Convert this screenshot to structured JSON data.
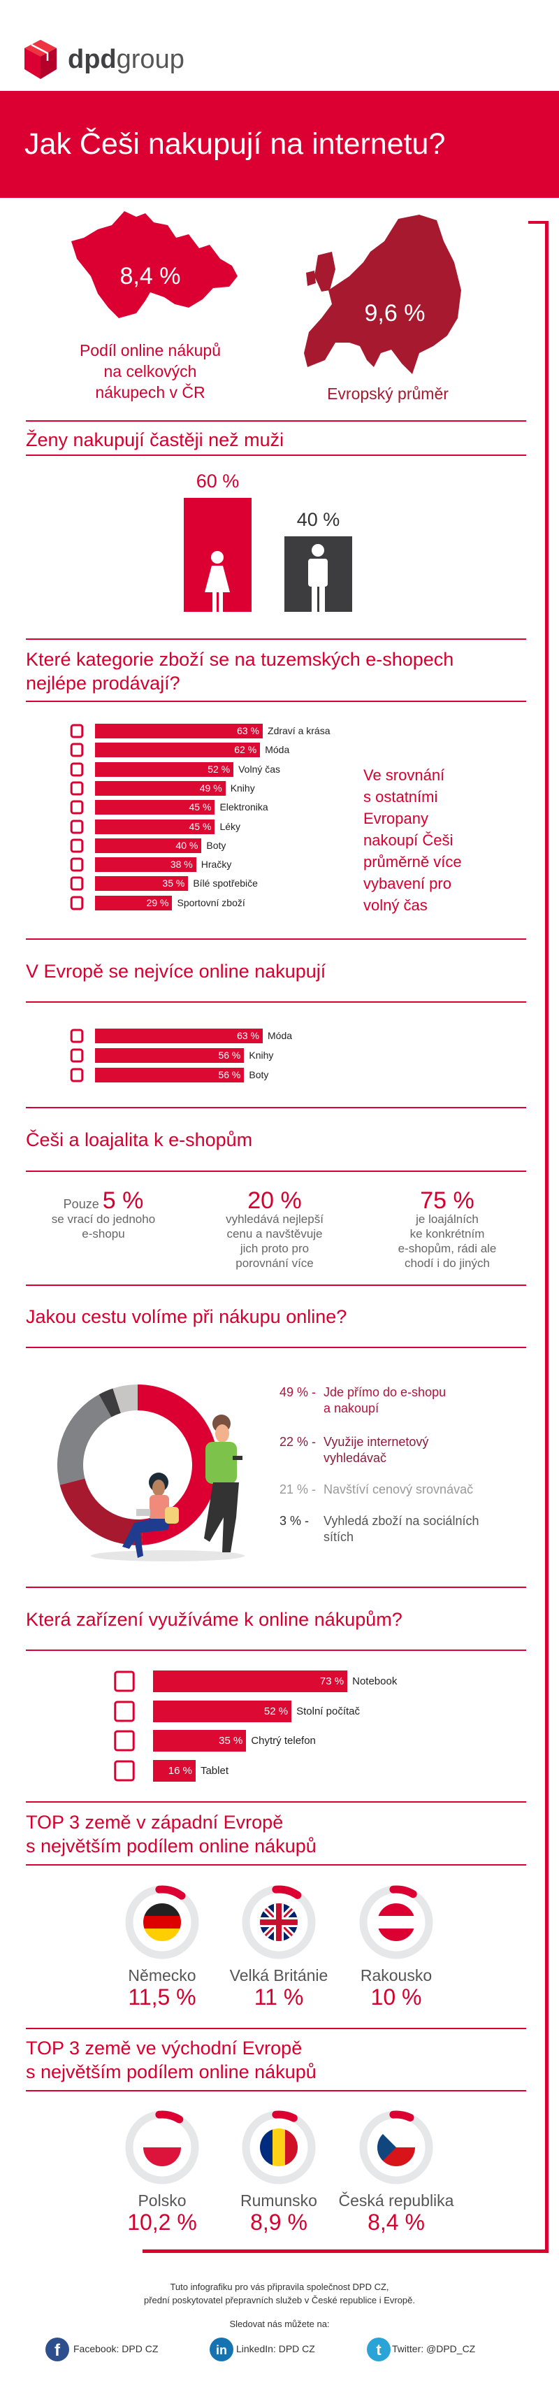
{
  "brand": {
    "logo_bold": "dpd",
    "logo_light": "group",
    "color": "#dc0032"
  },
  "title": "Jak Češi nakupují na internetu?",
  "share": {
    "cz_value": "8,4 %",
    "cz_caption": [
      "Podíl online nákupů",
      "na celkových",
      "nákupech v ČR"
    ],
    "eu_value": "9,6 %",
    "eu_caption": "Evropský průměr"
  },
  "gender": {
    "heading": "Ženy nakupují častěji než muži",
    "women_label": "60 %",
    "men_label": "40 %",
    "women_color": "#dc0032",
    "men_color": "#3d3d3f"
  },
  "categories": {
    "heading": [
      "Které kategorie zboží se na tuzemských e-shopech",
      "nejlépe prodávají?"
    ],
    "note": [
      "Ve srovnání",
      "s ostatními",
      "Evropany",
      "nakoupí Češi",
      "průměrně více",
      "vybavení pro",
      "volný čas"
    ]
  },
  "europe": {
    "heading": "V Evropě se nejvíce online nakupují"
  },
  "loyalty": {
    "heading": "Češi a loajalita k e-shopům",
    "items": [
      {
        "prefix": "Pouze ",
        "value": "5 %",
        "text": [
          "se vrací do jednoho",
          "e-shopu"
        ]
      },
      {
        "prefix": "",
        "value": "20 %",
        "text": [
          "vyhledává nejlepší",
          "cenu a navštěvuje",
          "jich proto pro",
          "porovnání více"
        ]
      },
      {
        "prefix": "",
        "value": "75 %",
        "text": [
          "je loajálních",
          "ke konkrétním",
          "e-shopům, rádi ale",
          "chodí i do jiných"
        ]
      }
    ]
  },
  "route": {
    "heading": "Jakou cestu volíme při nákupu online?",
    "legend": [
      {
        "pct": "49 % -",
        "text": "Jde přímo do e-shopu a nakoupí",
        "color": "#b4123c"
      },
      {
        "pct": "22 % -",
        "text": "Využije internetový vyhledávač",
        "color": "#8c1b3c"
      },
      {
        "pct": "21 % -",
        "text": "Navštíví cenový srovnávač",
        "color": "#999999"
      },
      {
        "pct": "3 % -",
        "text": "Vyhledá zboží na sociálních sítích",
        "color": "#333333"
      }
    ]
  },
  "devices": {
    "heading": "Která zařízení využíváme k online nákupům?"
  },
  "west": {
    "heading": [
      "TOP 3 země v západní Evropě",
      "s největším podílem online nákupů"
    ],
    "countries": [
      {
        "name": "Německo",
        "value": "11,5 %",
        "share": 11.5,
        "flag": "germany"
      },
      {
        "name": "Velká Británie",
        "value": "11 %",
        "share": 11,
        "flag": "uk"
      },
      {
        "name": "Rakousko",
        "value": "10 %",
        "share": 10,
        "flag": "austria"
      }
    ]
  },
  "east": {
    "heading": [
      "TOP 3 země ve východní Evropě",
      "s největším podílem online nákupů"
    ],
    "countries": [
      {
        "name": "Polsko",
        "value": "10,2 %",
        "share": 10.2,
        "flag": "poland"
      },
      {
        "name": "Rumunsko",
        "value": "8,9 %",
        "share": 8.9,
        "flag": "romania"
      },
      {
        "name": "Česká republika",
        "value": "8,4 %",
        "share": 8.4,
        "flag": "czech"
      }
    ]
  },
  "footer": {
    "line1": "Tuto infografiku pro vás připravila společnost DPD CZ,",
    "line2": "přední poskytovatel přepravních služeb v České republice i Evropě.",
    "follow": "Sledovat nás můžete na:",
    "facebook": "Facebook: DPD CZ",
    "linkedin": "LinkedIn: DPD CZ",
    "twitter": "Twitter: @DPD_CZ"
  },
  "chart_data": [
    {
      "type": "bar",
      "orientation": "horizontal",
      "categories": [
        "Zdraví a krása",
        "Móda",
        "Volný čas",
        "Knihy",
        "Elektronika",
        "Léky",
        "Boty",
        "Hračky",
        "Bílé spotřebiče",
        "Sportovní zboží"
      ],
      "values": [
        63,
        62,
        52,
        49,
        45,
        45,
        40,
        38,
        35,
        29
      ],
      "labels": [
        "63 %",
        "62 %",
        "52 %",
        "49 %",
        "45 %",
        "45 %",
        "40 %",
        "38 %",
        "35 %",
        "29 %"
      ],
      "icons": [
        "cosmetics-icon",
        "tshirt-icon",
        "gamepad-icon",
        "books-icon",
        "usb-icon",
        "medicine-icon",
        "high-heel-icon",
        "rocking-horse-icon",
        "washing-machine-icon",
        "ball-icon"
      ]
    },
    {
      "type": "bar",
      "orientation": "horizontal",
      "categories": [
        "Móda",
        "Knihy",
        "Boty"
      ],
      "values": [
        63,
        56,
        56
      ],
      "labels": [
        "63 %",
        "56 %",
        "56 %"
      ],
      "icons": [
        "tshirt-icon",
        "books-icon",
        "high-heel-icon"
      ]
    },
    {
      "type": "pie",
      "donut": true,
      "values": [
        49,
        22,
        21,
        3,
        5
      ],
      "colors": [
        "#dc0032",
        "#a6192e",
        "#808285",
        "#3d3d3f",
        "#c8c6c4"
      ]
    },
    {
      "type": "bar",
      "orientation": "horizontal",
      "categories": [
        "Notebook",
        "Stolní počítač",
        "Chytrý telefon",
        "Tablet"
      ],
      "values": [
        73,
        52,
        35,
        16
      ],
      "labels": [
        "73 %",
        "52 %",
        "35 %",
        "16 %"
      ],
      "icons": [
        "laptop-icon",
        "desktop-icon",
        "smartphone-icon",
        "tablet-icon"
      ]
    }
  ]
}
